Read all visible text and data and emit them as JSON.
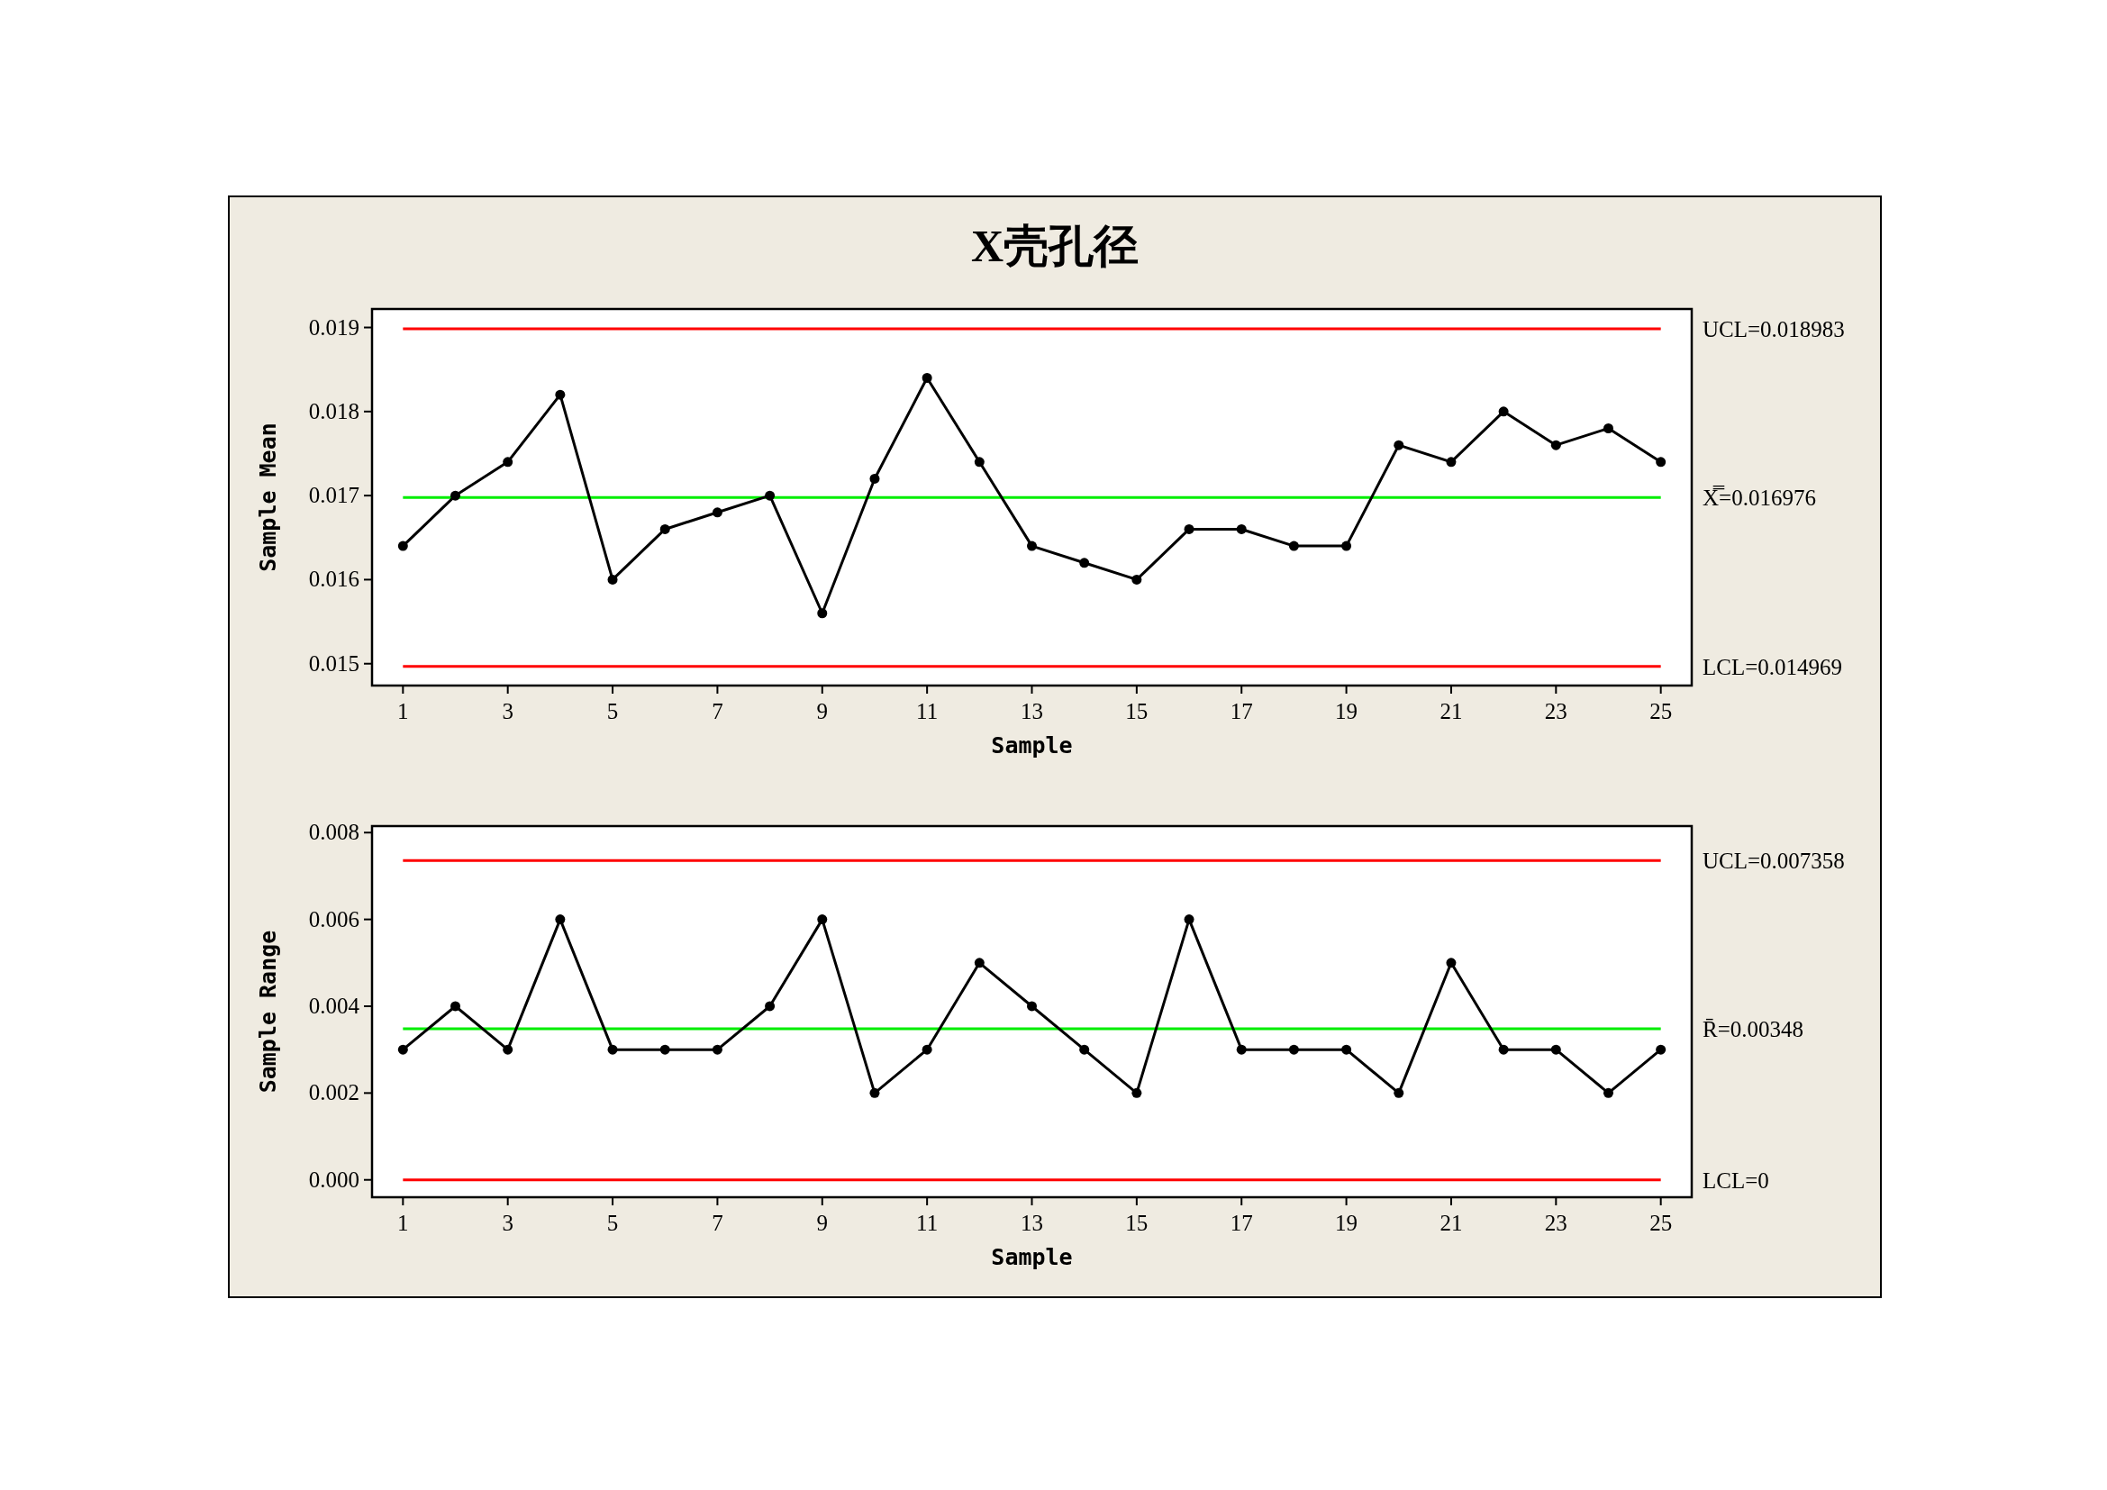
{
  "chart_data": [
    {
      "type": "line",
      "title": "X壳孔径",
      "xlabel": "Sample",
      "ylabel": "Sample Mean",
      "marker": "circle",
      "x": [
        1,
        2,
        3,
        4,
        5,
        6,
        7,
        8,
        9,
        10,
        11,
        12,
        13,
        14,
        15,
        16,
        17,
        18,
        19,
        20,
        21,
        22,
        23,
        24,
        25
      ],
      "xlim": [
        0.41,
        25.59
      ],
      "xticks": [
        1,
        3,
        5,
        7,
        9,
        11,
        13,
        15,
        17,
        19,
        21,
        23,
        25
      ],
      "ylim": [
        0.01474,
        0.01922
      ],
      "yticks": [
        0.015,
        0.016,
        0.017,
        0.018,
        0.019
      ],
      "series": [
        {
          "color": "#000000",
          "values": [
            0.0164,
            0.017,
            0.0174,
            0.0182,
            0.016,
            0.0166,
            0.0168,
            0.017,
            0.0156,
            0.0172,
            0.0184,
            0.0174,
            0.0164,
            0.0162,
            0.016,
            0.0166,
            0.0166,
            0.0164,
            0.0164,
            0.0176,
            0.0174,
            0.018,
            0.0176,
            0.0178,
            0.0174
          ]
        }
      ],
      "ref_lines": [
        {
          "axis": "y",
          "value": 0.018983,
          "label": "UCL=0.018983",
          "color": "#ff0000"
        },
        {
          "axis": "y",
          "value": 0.016976,
          "label": "X̿=0.016976",
          "color": "#00ee00"
        },
        {
          "axis": "y",
          "value": 0.014969,
          "label": "LCL=0.014969",
          "color": "#ff0000"
        }
      ]
    },
    {
      "type": "line",
      "xlabel": "Sample",
      "ylabel": "Sample Range",
      "marker": "circle",
      "x": [
        1,
        2,
        3,
        4,
        5,
        6,
        7,
        8,
        9,
        10,
        11,
        12,
        13,
        14,
        15,
        16,
        17,
        18,
        19,
        20,
        21,
        22,
        23,
        24,
        25
      ],
      "xlim": [
        0.41,
        25.59
      ],
      "xticks": [
        1,
        3,
        5,
        7,
        9,
        11,
        13,
        15,
        17,
        19,
        21,
        23,
        25
      ],
      "ylim": [
        -0.0004,
        0.00815
      ],
      "yticks": [
        {
          "value": 0,
          "label": "0.000"
        },
        0.002,
        0.004,
        0.006,
        0.008
      ],
      "series": [
        {
          "color": "#000000",
          "values": [
            0.003,
            0.004,
            0.003,
            0.006,
            0.003,
            0.003,
            0.003,
            0.004,
            0.006,
            0.002,
            0.003,
            0.005,
            0.004,
            0.003,
            0.002,
            0.006,
            0.003,
            0.003,
            0.003,
            0.002,
            0.005,
            0.003,
            0.003,
            0.002,
            0.003
          ]
        }
      ],
      "ref_lines": [
        {
          "axis": "y",
          "value": 0.007358,
          "label": "UCL=0.007358",
          "color": "#ff0000"
        },
        {
          "axis": "y",
          "value": 0.00348,
          "label": "R̄=0.00348",
          "color": "#00ee00"
        },
        {
          "axis": "y",
          "value": 0,
          "label": "LCL=0",
          "color": "#ff0000"
        }
      ]
    }
  ]
}
